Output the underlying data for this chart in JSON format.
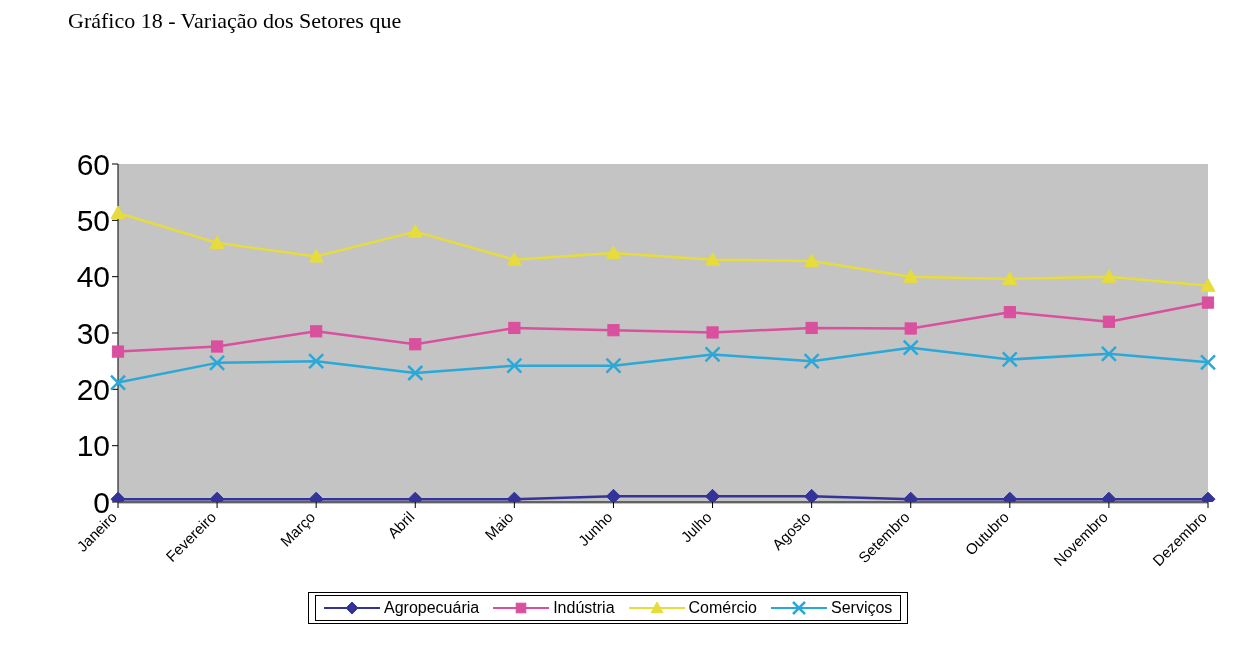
{
  "chart_data": {
    "type": "line",
    "title": "Gráfico 18 - Variação dos Setores que",
    "categories": [
      "Janeiro",
      "Fevereiro",
      "Março",
      "Abril",
      "Maio",
      "Junho",
      "Julho",
      "Agosto",
      "Setembro",
      "Outubro",
      "Novembro",
      "Dezembro"
    ],
    "series": [
      {
        "name": "Agropecuária",
        "color": "#333399",
        "marker": "diamond",
        "values": [
          0.5,
          0.5,
          0.5,
          0.5,
          0.5,
          1,
          1,
          1,
          0.5,
          0.5,
          0.5,
          0.5
        ]
      },
      {
        "name": "Indústria",
        "color": "#d9509e",
        "marker": "square",
        "values": [
          26.7,
          27.6,
          30.3,
          28,
          30.9,
          30.5,
          30.1,
          30.9,
          30.8,
          33.7,
          32,
          35.4
        ]
      },
      {
        "name": "Comércio",
        "color": "#e6dc3c",
        "marker": "triangle",
        "values": [
          51.3,
          46,
          43.6,
          48,
          43,
          44.2,
          43,
          42.8,
          40,
          39.6,
          40,
          38.4
        ]
      },
      {
        "name": "Serviços",
        "color": "#2aa8d8",
        "marker": "cross",
        "values": [
          21.2,
          24.7,
          25,
          22.9,
          24.2,
          24.2,
          26.2,
          25,
          27.4,
          25.3,
          26.3,
          24.8
        ]
      }
    ],
    "ylim": [
      0,
      60
    ],
    "yticks": [
      0,
      10,
      20,
      30,
      40,
      50,
      60
    ],
    "grid": false,
    "legend": "bottom"
  }
}
